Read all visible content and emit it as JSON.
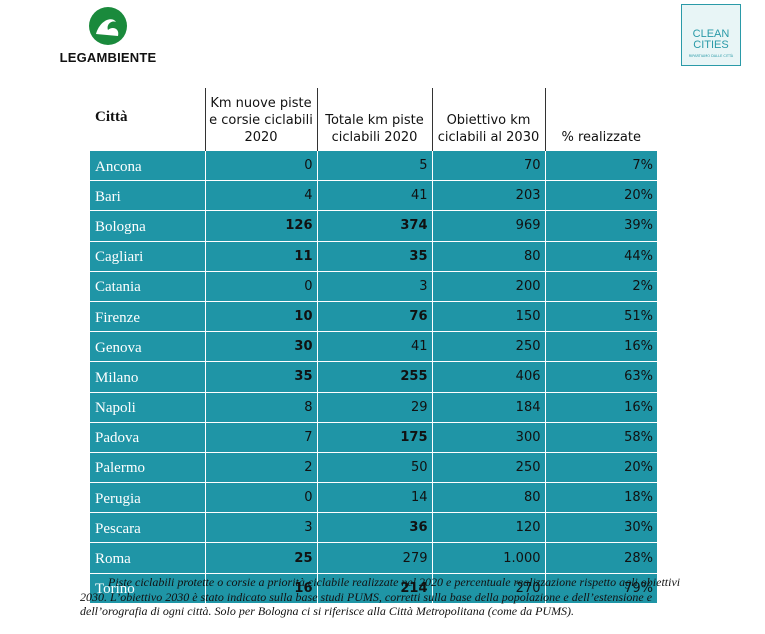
{
  "header": {
    "left_logo": "LEGAMBIENTE",
    "right_logo": "CLEAN\nCITIES",
    "right_logo_tagline": "RIPARTIAMO DALLE CITTÀ"
  },
  "table": {
    "columns": [
      "Città",
      "Km nuove piste e corsie ciclabili 2020",
      "Totale km piste ciclabili 2020",
      "Obiettivo km ciclabili al 2030",
      "% realizzate"
    ],
    "rows": [
      [
        "Ancona",
        "0",
        "5",
        "70",
        "7%"
      ],
      [
        "Bari",
        "4",
        "41",
        "203",
        "20%"
      ],
      [
        "Bologna",
        "126",
        "374",
        "969",
        "39%"
      ],
      [
        "Cagliari",
        "11",
        "35",
        "80",
        "44%"
      ],
      [
        "Catania",
        "0",
        "3",
        "200",
        "2%"
      ],
      [
        "Firenze",
        "10",
        "76",
        "150",
        "51%"
      ],
      [
        "Genova",
        "30",
        "41",
        "250",
        "16%"
      ],
      [
        "Milano",
        "35",
        "255",
        "406",
        "63%"
      ],
      [
        "Napoli",
        "8",
        "29",
        "184",
        "16%"
      ],
      [
        "Padova",
        "7",
        "175",
        "300",
        "58%"
      ],
      [
        "Palermo",
        "2",
        "50",
        "250",
        "20%"
      ],
      [
        "Perugia",
        "0",
        "14",
        "80",
        "18%"
      ],
      [
        "Pescara",
        "3",
        "36",
        "120",
        "30%"
      ],
      [
        "Roma",
        "25",
        "279",
        "1.000",
        "28%"
      ],
      [
        "Torino",
        "16",
        "214",
        "270",
        "79%"
      ]
    ],
    "bold": [
      [
        false,
        false,
        false,
        false,
        false
      ],
      [
        false,
        false,
        false,
        false,
        false
      ],
      [
        false,
        true,
        true,
        false,
        false
      ],
      [
        false,
        true,
        true,
        false,
        false
      ],
      [
        false,
        false,
        false,
        false,
        false
      ],
      [
        false,
        true,
        true,
        false,
        false
      ],
      [
        false,
        true,
        false,
        false,
        false
      ],
      [
        false,
        true,
        true,
        false,
        false
      ],
      [
        false,
        false,
        false,
        false,
        false
      ],
      [
        false,
        false,
        true,
        false,
        false
      ],
      [
        false,
        false,
        false,
        false,
        false
      ],
      [
        false,
        false,
        false,
        false,
        false
      ],
      [
        false,
        false,
        true,
        false,
        false
      ],
      [
        false,
        true,
        false,
        false,
        false
      ],
      [
        false,
        true,
        true,
        false,
        false
      ]
    ]
  },
  "caption": "Piste ciclabili protette o corsie a priorità ciclabile realizzate nel 2020 e percentuale realizzazione rispetto agli obiettivi 2030. L’obiettivo 2030 è stato indicato sulla base studi PUMS, corretti sulla base della popolazione e dell’estensione e dell’orografia di ogni città. Solo per Bologna ci si riferisce alla Città Metropolitana (come da PUMS)."
}
